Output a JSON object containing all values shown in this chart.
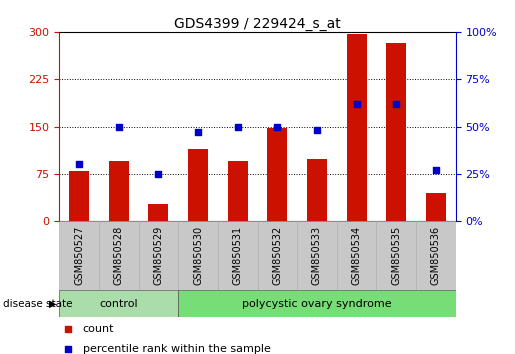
{
  "title": "GDS4399 / 229424_s_at",
  "samples": [
    "GSM850527",
    "GSM850528",
    "GSM850529",
    "GSM850530",
    "GSM850531",
    "GSM850532",
    "GSM850533",
    "GSM850534",
    "GSM850535",
    "GSM850536"
  ],
  "counts": [
    80,
    95,
    28,
    115,
    95,
    148,
    98,
    297,
    283,
    45
  ],
  "percentiles": [
    30,
    50,
    25,
    47,
    50,
    50,
    48,
    62,
    62,
    27
  ],
  "left_ylim": [
    0,
    300
  ],
  "right_ylim": [
    0,
    100
  ],
  "left_yticks": [
    0,
    75,
    150,
    225,
    300
  ],
  "right_yticks": [
    0,
    25,
    50,
    75,
    100
  ],
  "bar_color": "#cc1100",
  "dot_color": "#0000cc",
  "tick_area_color": "#c8c8c8",
  "control_color": "#aaddaa",
  "pcos_color": "#77dd77",
  "control_label": "control",
  "pcos_label": "polycystic ovary syndrome",
  "disease_state_label": "disease state",
  "legend_count": "count",
  "legend_pct": "percentile rank within the sample",
  "control_samples": 3,
  "pcos_samples": 7,
  "title_fontsize": 10,
  "axis_label_fontsize": 8,
  "tick_label_fontsize": 7,
  "legend_fontsize": 8
}
